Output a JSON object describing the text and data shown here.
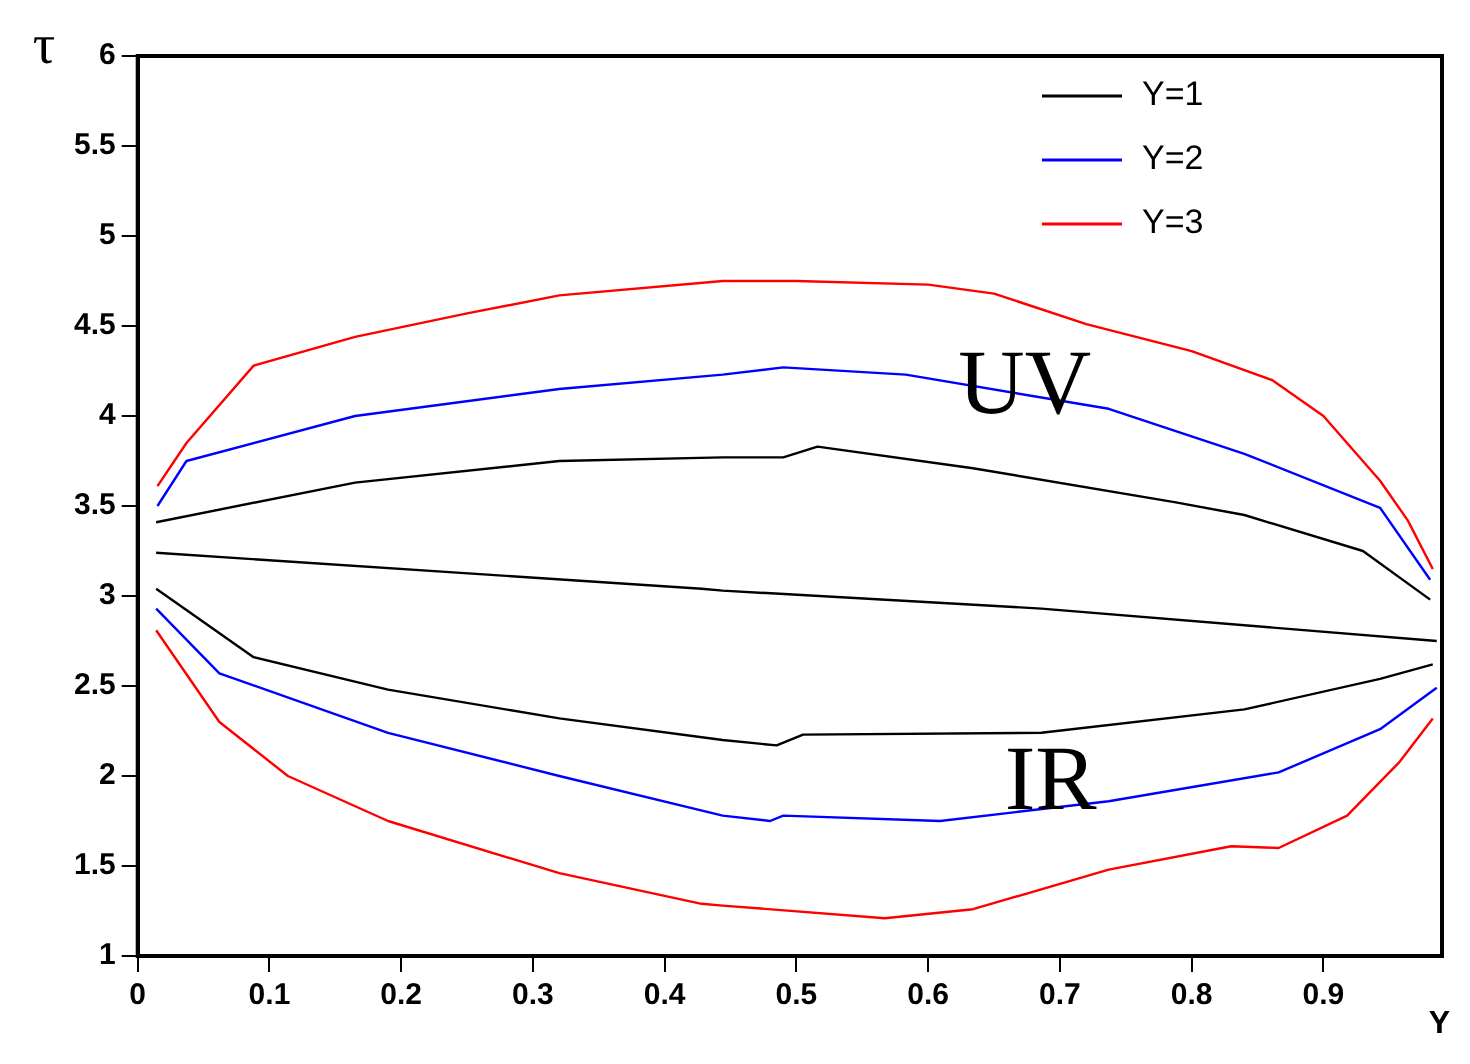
{
  "chart_data": {
    "type": "line",
    "xlabel": "Y",
    "ylabel": "τ",
    "xlim": [
      0,
      0.99
    ],
    "ylim": [
      1,
      6
    ],
    "xticks": [
      0,
      0.1,
      0.2,
      0.3,
      0.4,
      0.5,
      0.6,
      0.7,
      0.8,
      0.9
    ],
    "yticks": [
      1,
      1.5,
      2,
      2.5,
      3,
      3.5,
      4,
      4.5,
      5,
      5.5,
      6
    ],
    "grid": false,
    "legend": "top right",
    "marker": "none",
    "line_style": "solid",
    "annotations": [
      "UV",
      "IR"
    ],
    "series": [
      {
        "name": "Y=1",
        "color": "#000000",
        "x": [
          0.014,
          0.165,
          0.32,
          0.444,
          0.49,
          0.516,
          0.634,
          0.788,
          0.84,
          0.93,
          0.981
        ],
        "values": [
          3.41,
          3.63,
          3.75,
          3.77,
          3.77,
          3.83,
          3.71,
          3.52,
          3.45,
          3.25,
          2.98
        ]
      },
      {
        "name": "Y=2",
        "color": "#0000ff",
        "x": [
          0.015,
          0.037,
          0.165,
          0.32,
          0.444,
          0.49,
          0.583,
          0.737,
          0.84,
          0.943,
          0.981
        ],
        "values": [
          3.5,
          3.75,
          4.0,
          4.15,
          4.23,
          4.27,
          4.23,
          4.04,
          3.79,
          3.49,
          3.09
        ]
      },
      {
        "name": "Y=3",
        "color": "#ff0000",
        "x": [
          0.015,
          0.037,
          0.088,
          0.165,
          0.25,
          0.32,
          0.444,
          0.5,
          0.6,
          0.65,
          0.72,
          0.8,
          0.861,
          0.9,
          0.943,
          0.964,
          0.983
        ],
        "values": [
          3.61,
          3.85,
          4.28,
          4.44,
          4.57,
          4.67,
          4.75,
          4.75,
          4.73,
          4.68,
          4.51,
          4.36,
          4.2,
          4.0,
          3.64,
          3.42,
          3.15
        ]
      },
      {
        "color": "#000000",
        "x": [
          0.014,
          0.428,
          0.444,
          0.686,
          0.986
        ],
        "values": [
          3.24,
          3.04,
          3.03,
          2.93,
          2.75
        ]
      },
      {
        "color": "#000000",
        "x": [
          0.014,
          0.088,
          0.19,
          0.32,
          0.444,
          0.485,
          0.505,
          0.686,
          0.84,
          0.943,
          0.983
        ],
        "values": [
          3.04,
          2.66,
          2.48,
          2.32,
          2.2,
          2.17,
          2.23,
          2.24,
          2.37,
          2.54,
          2.62
        ]
      },
      {
        "color": "#0000ff",
        "x": [
          0.014,
          0.062,
          0.19,
          0.32,
          0.444,
          0.48,
          0.49,
          0.609,
          0.737,
          0.866,
          0.943,
          0.986
        ],
        "values": [
          2.93,
          2.57,
          2.24,
          2.0,
          1.78,
          1.75,
          1.78,
          1.75,
          1.86,
          2.02,
          2.26,
          2.49
        ]
      },
      {
        "color": "#ff0000",
        "x": [
          0.014,
          0.062,
          0.114,
          0.19,
          0.32,
          0.428,
          0.444,
          0.567,
          0.634,
          0.737,
          0.83,
          0.866,
          0.918,
          0.958,
          0.983
        ],
        "values": [
          2.81,
          2.3,
          2.0,
          1.75,
          1.46,
          1.29,
          1.28,
          1.21,
          1.26,
          1.48,
          1.61,
          1.6,
          1.78,
          2.08,
          2.32
        ]
      }
    ]
  }
}
